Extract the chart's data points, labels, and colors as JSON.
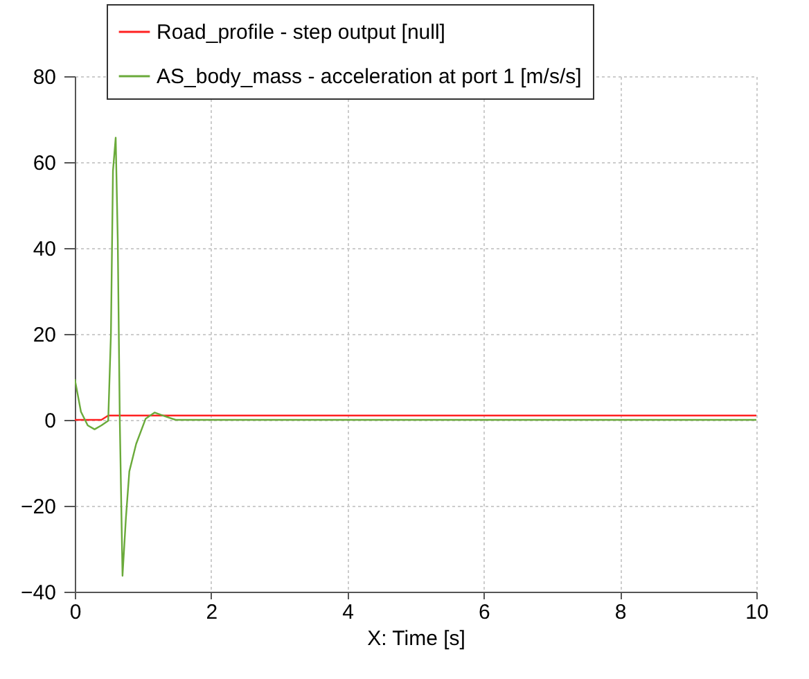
{
  "chart_data": {
    "type": "line",
    "xlabel": "X: Time [s]",
    "xlim": [
      0,
      10
    ],
    "xticks": [
      0,
      2,
      4,
      6,
      8,
      10
    ],
    "ylim": [
      -40,
      80
    ],
    "yticks": [
      -40,
      -20,
      0,
      20,
      40,
      60,
      80
    ],
    "grid": true,
    "legend": "top",
    "line_style": "solid",
    "series": [
      {
        "name": "Road_profile - step output [null]",
        "color": "#ff2020",
        "x": [
          0,
          0.39,
          0.49,
          10
        ],
        "values": [
          0,
          0,
          1,
          1
        ]
      },
      {
        "name": "AS_body_mass - acceleration at port 1 [m/s/s]",
        "color": "#6aaa3a",
        "x": [
          0,
          0.09,
          0.19,
          0.29,
          0.39,
          0.49,
          0.53,
          0.56,
          0.6,
          0.63,
          0.66,
          0.7,
          0.75,
          0.8,
          0.9,
          1.04,
          1.17,
          1.31,
          1.48,
          10
        ],
        "values": [
          9.5,
          1.9,
          -1.3,
          -2.2,
          -1.3,
          -0.2,
          20,
          58,
          65.7,
          42,
          0,
          -36.3,
          -22.8,
          -12,
          -5.6,
          0.3,
          1.7,
          0.9,
          0,
          0
        ]
      }
    ]
  }
}
